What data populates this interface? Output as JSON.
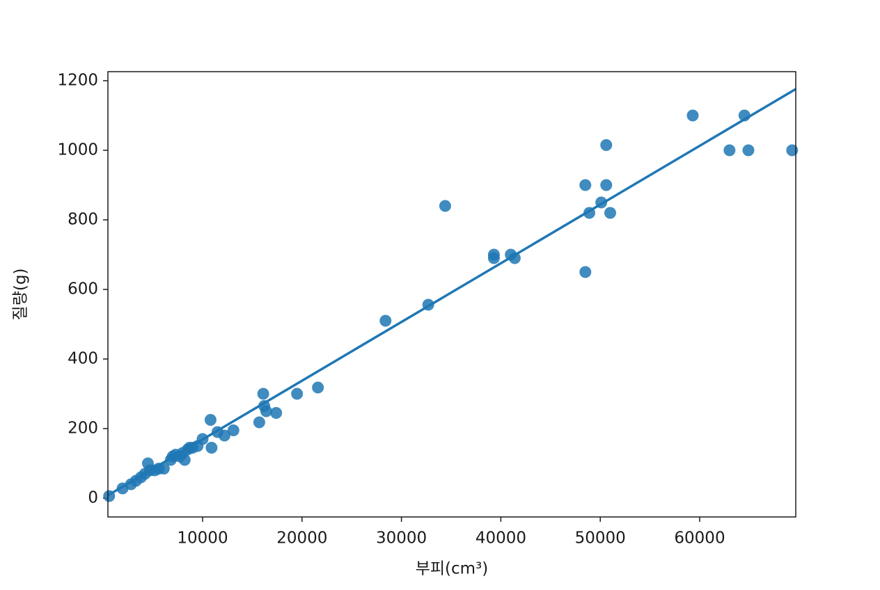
{
  "chart_data": {
    "type": "scatter",
    "x_label": "부피(cm³)",
    "y_label": "질량(g)",
    "color": "#1f77b4",
    "x": [
      600,
      1950,
      2800,
      3300,
      3800,
      4200,
      4500,
      4700,
      5200,
      5600,
      6100,
      6800,
      7000,
      7300,
      7700,
      8000,
      8200,
      8500,
      8700,
      9000,
      9500,
      10000,
      10800,
      10900,
      11500,
      12200,
      13100,
      15700,
      16100,
      16200,
      16400,
      17400,
      19500,
      21600,
      28400,
      32700,
      34400,
      39300,
      39300,
      41000,
      41400,
      48500,
      48500,
      48900,
      50100,
      50600,
      50600,
      51000,
      59300,
      63000,
      64500,
      64900,
      69300
    ],
    "values": [
      6,
      28,
      40,
      50,
      60,
      70,
      100,
      80,
      80,
      85,
      85,
      110,
      120,
      125,
      120,
      130,
      110,
      140,
      145,
      145,
      150,
      170,
      225,
      145,
      190,
      180,
      195,
      218,
      300,
      265,
      250,
      245,
      300,
      318,
      510,
      556,
      840,
      700,
      690,
      700,
      690,
      900,
      650,
      820,
      850,
      1015,
      900,
      820,
      1100,
      1000,
      1100,
      1000,
      1000
    ],
    "fit": {
      "x": [
        476,
        69664
      ],
      "values": [
        8,
        1176
      ]
    },
    "xlim": [
      476,
      69664
    ],
    "ylim": [
      -54,
      1226
    ],
    "xticks": [
      10000,
      20000,
      30000,
      40000,
      50000,
      60000
    ],
    "yticks": [
      0,
      200,
      400,
      600,
      800,
      1000,
      1200
    ]
  }
}
